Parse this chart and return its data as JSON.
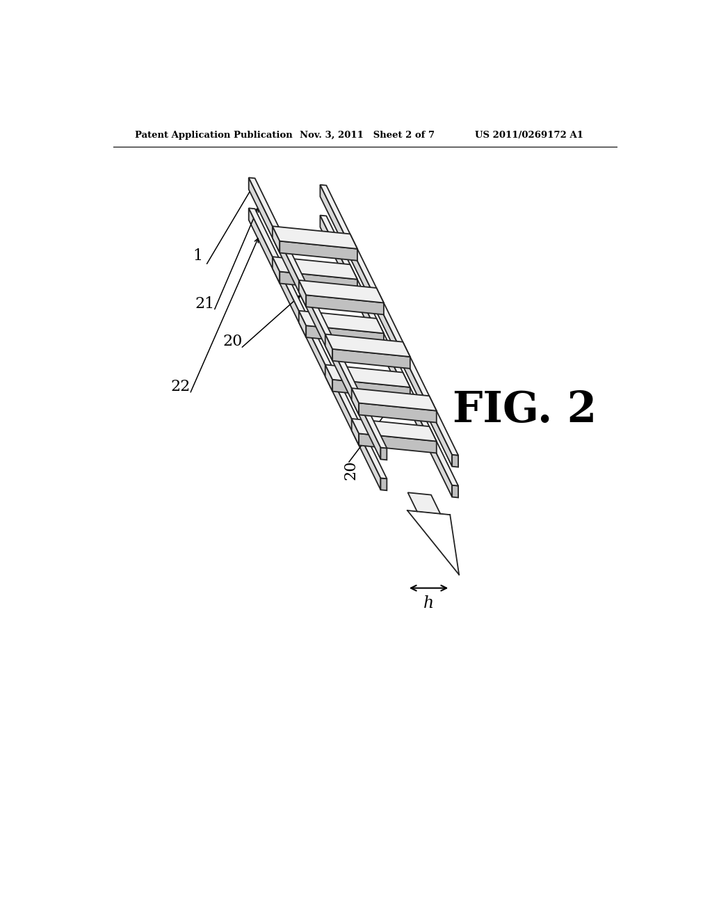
{
  "header_left": "Patent Application Publication",
  "header_mid": "Nov. 3, 2011   Sheet 2 of 7",
  "header_right": "US 2011/0269172 A1",
  "fig_label": "FIG. 2",
  "ref_1": "1",
  "ref_20a": "20",
  "ref_20b": "20",
  "ref_21": "21",
  "ref_22": "22",
  "dim_label": "h",
  "bg_color": "#ffffff",
  "ec": "#222222",
  "cf_top": "#f0f0f0",
  "cf_front": "#d8d8d8",
  "cf_side": "#c0c0c0"
}
